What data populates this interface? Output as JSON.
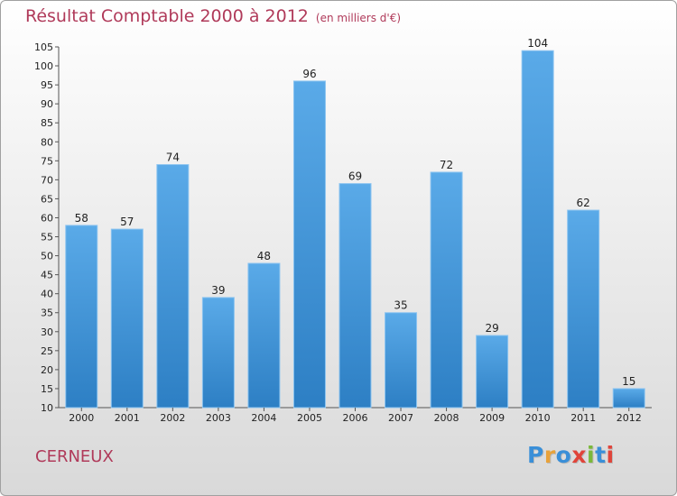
{
  "chart_data": {
    "type": "bar",
    "title": "Résultat Comptable 2000 à 2012",
    "subtitle": "(en milliers d'€)",
    "categories": [
      "2000",
      "2001",
      "2002",
      "2003",
      "2004",
      "2005",
      "2006",
      "2007",
      "2008",
      "2009",
      "2010",
      "2011",
      "2012"
    ],
    "values": [
      58,
      57,
      74,
      39,
      48,
      96,
      69,
      35,
      72,
      29,
      104,
      62,
      15
    ],
    "ylim": [
      10,
      105
    ],
    "ytick_step": 5,
    "xlabel": "",
    "ylabel": "",
    "grid": false,
    "bar_color_top": "#5aaae8",
    "bar_color_bottom": "#2d7fc4"
  },
  "footer": {
    "place": "CERNEUX",
    "logo": "Proxiti"
  }
}
